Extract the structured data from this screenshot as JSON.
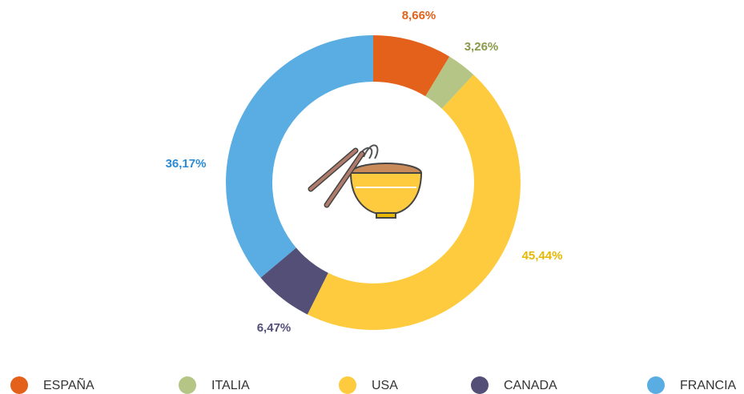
{
  "chart_data": {
    "type": "donut",
    "categories": [
      "ESPAÑA",
      "ITALIA",
      "USA",
      "CANADA",
      "FRANCIA"
    ],
    "values": [
      8.66,
      3.26,
      45.44,
      6.47,
      36.17
    ],
    "value_labels": [
      "8,66%",
      "3,26%",
      "45,44%",
      "6,47%",
      "36,17%"
    ],
    "colors": [
      "#e3611a",
      "#b5c585",
      "#fecb3e",
      "#534f77",
      "#5aade3"
    ],
    "label_colors": [
      "#e3611a",
      "#8a9a4a",
      "#e6b800",
      "#534f77",
      "#2a8ad4"
    ],
    "legend": "bottom"
  }
}
